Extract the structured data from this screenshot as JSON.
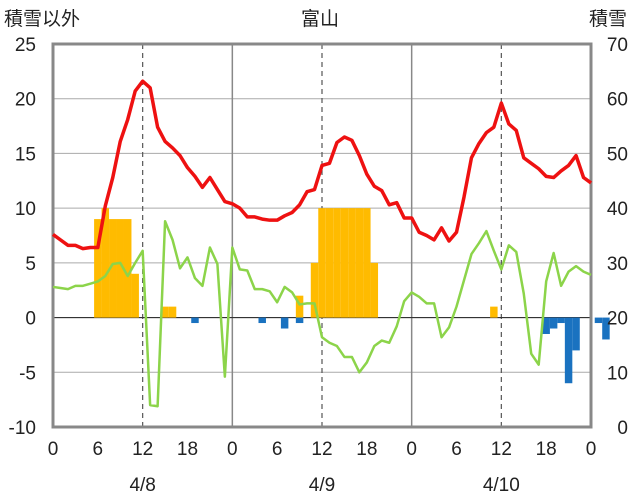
{
  "header": {
    "left_label": "積雪以外",
    "title": "富山",
    "right_label": "積雪"
  },
  "chart_data": {
    "type": "line+bar",
    "title": "富山",
    "ylabel_left": "積雪以外",
    "ylabel_right": "積雪",
    "ylim_left": [
      -10,
      25
    ],
    "ylim_right": [
      0,
      70
    ],
    "yticks_left": [
      "25",
      "20",
      "15",
      "10",
      "5",
      "0",
      "-5",
      "-10"
    ],
    "yticks_right": [
      "70",
      "60",
      "50",
      "40",
      "30",
      "20",
      "10",
      "0"
    ],
    "x_hours_total": 72,
    "x_tick_labels": [
      "0",
      "6",
      "12",
      "18",
      "0",
      "6",
      "12",
      "18",
      "0",
      "6",
      "12",
      "18",
      "0"
    ],
    "date_labels": [
      "4/8",
      "4/9",
      "4/10"
    ],
    "colors": {
      "temperature": "#ee1111",
      "wind": "#8cd44a",
      "snow_positive": "#ffbb00",
      "snow_negative": "#1a72c0",
      "baseline": "#7a3fa0",
      "frame": "#888888",
      "grid": "#aaaaaa"
    },
    "series": [
      {
        "name": "temperature",
        "axis": "left",
        "values": [
          7.6,
          7.1,
          6.6,
          6.6,
          6.3,
          6.4,
          6.4,
          10.2,
          12.8,
          16.1,
          18.1,
          20.7,
          21.6,
          21.0,
          17.4,
          16.1,
          15.5,
          14.8,
          13.7,
          12.9,
          11.9,
          12.8,
          11.7,
          10.6,
          10.4,
          10.0,
          9.2,
          9.2,
          9.0,
          8.9,
          8.9,
          9.3,
          9.6,
          10.3,
          11.5,
          11.7,
          13.9,
          14.1,
          16.0,
          16.5,
          16.2,
          14.8,
          13.1,
          12.0,
          11.6,
          10.3,
          10.5,
          9.1,
          9.1,
          7.8,
          7.5,
          7.1,
          8.2,
          7.0,
          7.8,
          11.0,
          14.6,
          15.9,
          16.9,
          17.4,
          19.6,
          17.7,
          17.1,
          14.6,
          14.1,
          13.6,
          12.9,
          12.8,
          13.4,
          13.9,
          14.8,
          12.8,
          12.3
        ]
      },
      {
        "name": "wind",
        "axis": "left",
        "values": [
          2.8,
          2.7,
          2.6,
          2.9,
          2.9,
          3.1,
          3.3,
          3.8,
          4.9,
          5.0,
          3.8,
          5.0,
          6.1,
          -8.0,
          -8.1,
          8.8,
          7.1,
          4.5,
          5.5,
          3.6,
          2.9,
          6.4,
          4.9,
          -5.4,
          6.4,
          4.4,
          4.3,
          2.6,
          2.6,
          2.4,
          1.4,
          2.8,
          2.3,
          1.2,
          1.3,
          1.3,
          -1.8,
          -2.3,
          -2.6,
          -3.6,
          -3.6,
          -5.0,
          -4.1,
          -2.6,
          -2.1,
          -2.3,
          -0.8,
          1.5,
          2.3,
          1.9,
          1.3,
          1.3,
          -1.8,
          -0.9,
          1.0,
          3.4,
          5.8,
          6.8,
          7.9,
          6.1,
          4.4,
          6.6,
          6.0,
          2.2,
          -3.3,
          -4.3,
          3.3,
          5.9,
          2.9,
          4.2,
          4.7,
          4.2,
          3.9
        ]
      },
      {
        "name": "snow_diff_positive",
        "axis": "left",
        "bars": [
          {
            "hour": 6,
            "value": 9
          },
          {
            "hour": 7,
            "value": 10
          },
          {
            "hour": 8,
            "value": 9
          },
          {
            "hour": 9,
            "value": 9
          },
          {
            "hour": 10,
            "value": 9
          },
          {
            "hour": 11,
            "value": 4
          },
          {
            "hour": 15,
            "value": 1
          },
          {
            "hour": 16,
            "value": 1
          },
          {
            "hour": 33,
            "value": 2
          },
          {
            "hour": 35,
            "value": 5
          },
          {
            "hour": 36,
            "value": 10
          },
          {
            "hour": 37,
            "value": 10
          },
          {
            "hour": 38,
            "value": 10
          },
          {
            "hour": 39,
            "value": 10
          },
          {
            "hour": 40,
            "value": 10
          },
          {
            "hour": 41,
            "value": 10
          },
          {
            "hour": 42,
            "value": 10
          },
          {
            "hour": 43,
            "value": 5
          },
          {
            "hour": 59,
            "value": 1
          }
        ]
      },
      {
        "name": "snow_diff_negative",
        "axis": "left",
        "bars": [
          {
            "hour": 19,
            "value": -0.5
          },
          {
            "hour": 28,
            "value": -0.5
          },
          {
            "hour": 31,
            "value": -1
          },
          {
            "hour": 33,
            "value": -0.5
          },
          {
            "hour": 66,
            "value": -1.5
          },
          {
            "hour": 67,
            "value": -1
          },
          {
            "hour": 68,
            "value": -0.5
          },
          {
            "hour": 69,
            "value": -6
          },
          {
            "hour": 70,
            "value": -3
          },
          {
            "hour": 73,
            "value": -0.5
          },
          {
            "hour": 74,
            "value": -2
          }
        ]
      }
    ]
  }
}
